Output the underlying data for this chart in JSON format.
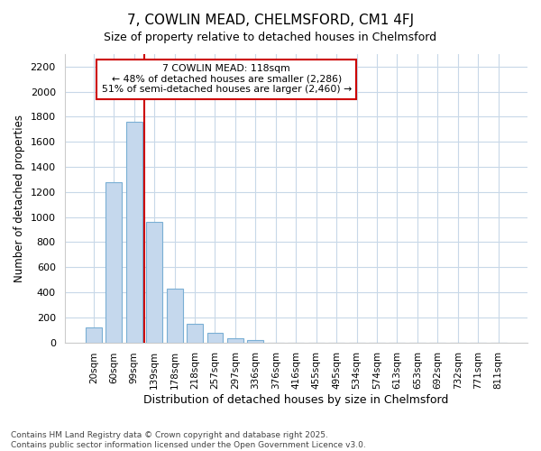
{
  "title1": "7, COWLIN MEAD, CHELMSFORD, CM1 4FJ",
  "title2": "Size of property relative to detached houses in Chelmsford",
  "xlabel": "Distribution of detached houses by size in Chelmsford",
  "ylabel": "Number of detached properties",
  "categories": [
    "20sqm",
    "60sqm",
    "99sqm",
    "139sqm",
    "178sqm",
    "218sqm",
    "257sqm",
    "297sqm",
    "336sqm",
    "376sqm",
    "416sqm",
    "455sqm",
    "495sqm",
    "534sqm",
    "574sqm",
    "613sqm",
    "653sqm",
    "692sqm",
    "732sqm",
    "771sqm",
    "811sqm"
  ],
  "values": [
    120,
    1280,
    1760,
    960,
    430,
    150,
    75,
    35,
    20,
    0,
    0,
    0,
    0,
    0,
    0,
    0,
    0,
    0,
    0,
    0,
    0
  ],
  "bar_color": "#c5d8ed",
  "bar_edge_color": "#7aafd4",
  "bar_width": 0.8,
  "red_line_x": 2.5,
  "ylim": [
    0,
    2300
  ],
  "yticks": [
    0,
    200,
    400,
    600,
    800,
    1000,
    1200,
    1400,
    1600,
    1800,
    2000,
    2200
  ],
  "annotation_title": "7 COWLIN MEAD: 118sqm",
  "annotation_line1": "← 48% of detached houses are smaller (2,286)",
  "annotation_line2": "51% of semi-detached houses are larger (2,460) →",
  "annotation_box_facecolor": "#ffffff",
  "annotation_box_edge": "#cc0000",
  "red_line_color": "#cc0000",
  "grid_color": "#c8d8e8",
  "footer1": "Contains HM Land Registry data © Crown copyright and database right 2025.",
  "footer2": "Contains public sector information licensed under the Open Government Licence v3.0.",
  "bg_color": "#ffffff",
  "title_fontsize": 11,
  "subtitle_fontsize": 9
}
